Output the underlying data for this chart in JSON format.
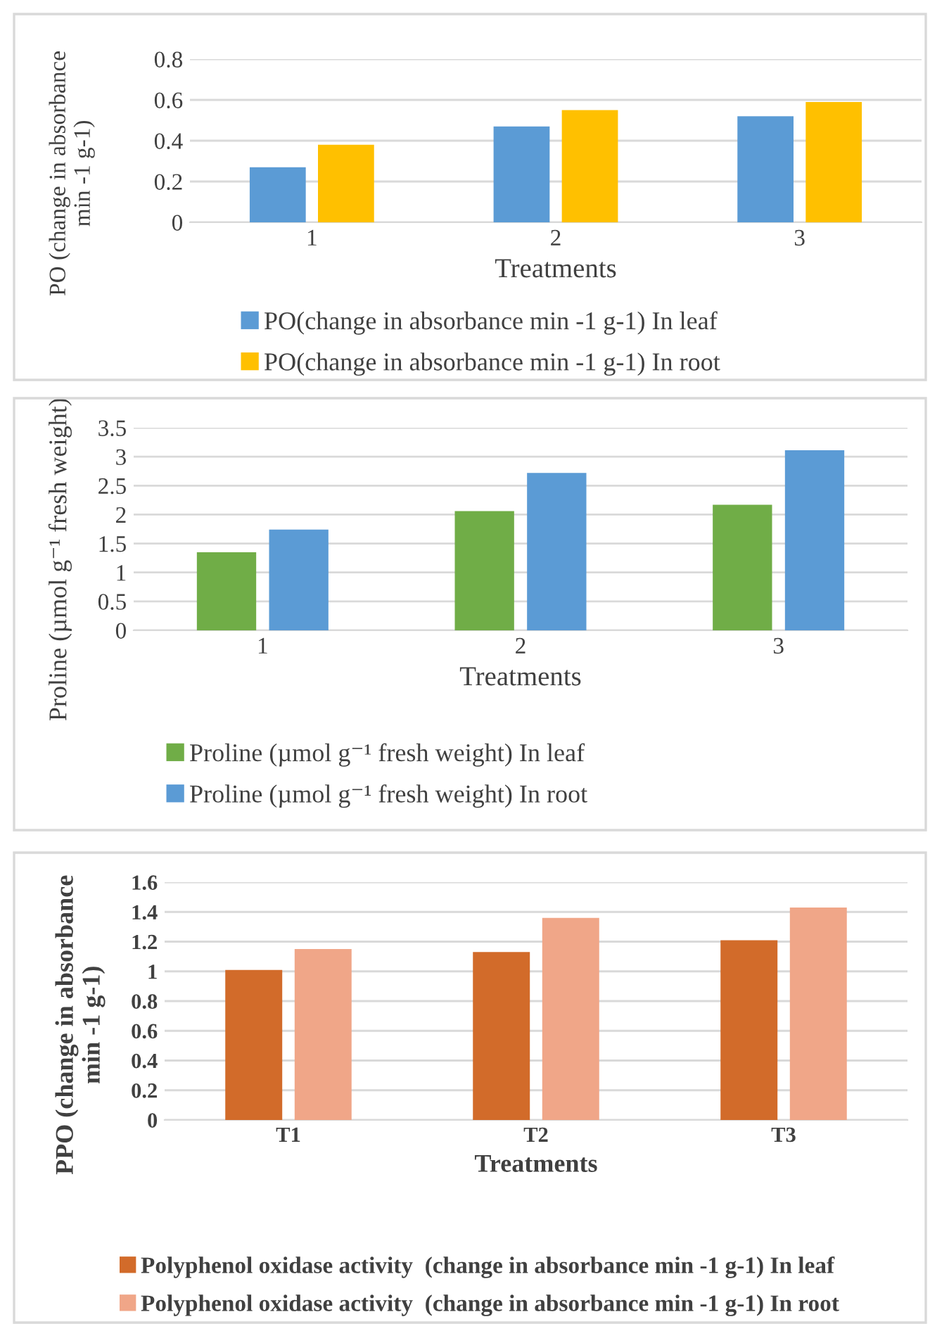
{
  "chart_data": [
    {
      "type": "bar",
      "categories": [
        "1",
        "2",
        "3"
      ],
      "xlabel": "Treatments",
      "ylabel": "PO (change in absorbance\nmin -1 g-1)",
      "ylim": [
        0,
        0.8
      ],
      "yticks": [
        0,
        0.2,
        0.4,
        0.6,
        0.8
      ],
      "grid": "y",
      "legend": "bottom",
      "series": [
        {
          "name": "PO(change in absorbance min -1 g-1) In leaf",
          "color": "#5b9bd5",
          "values": [
            0.27,
            0.47,
            0.52
          ]
        },
        {
          "name": "PO(change in absorbance min -1 g-1) In root",
          "color": "#ffc000",
          "values": [
            0.38,
            0.55,
            0.59
          ]
        }
      ]
    },
    {
      "type": "bar",
      "categories": [
        "1",
        "2",
        "3"
      ],
      "xlabel": "Treatments",
      "ylabel": "Proline (µmol g⁻¹ fresh weight)",
      "ylim": [
        0,
        3.5
      ],
      "yticks": [
        0,
        0.5,
        1,
        1.5,
        2,
        2.5,
        3,
        3.5
      ],
      "grid": "y",
      "legend": "bottom",
      "series": [
        {
          "name": "Proline (µmol g⁻¹ fresh weight) In leaf",
          "color": "#70ad47",
          "values": [
            1.35,
            2.06,
            2.17
          ]
        },
        {
          "name": "Proline (µmol g⁻¹ fresh weight) In root",
          "color": "#5b9bd5",
          "values": [
            1.74,
            2.72,
            3.11
          ]
        }
      ]
    },
    {
      "type": "bar",
      "categories": [
        "T1",
        "T2",
        "T3"
      ],
      "xlabel": "Treatments",
      "ylabel": "PPO (change in absorbance\nmin -1 g-1)",
      "ylim": [
        0,
        1.6
      ],
      "yticks": [
        0,
        0.2,
        0.4,
        0.6,
        0.8,
        1,
        1.2,
        1.4,
        1.6
      ],
      "grid": "y",
      "legend": "bottom",
      "series": [
        {
          "name": "Polyphenol oxidase activity  (change in absorbance min -1 g-1) In leaf",
          "color": "#d26b2a",
          "values": [
            1.01,
            1.13,
            1.21
          ]
        },
        {
          "name": "Polyphenol oxidase activity  (change in absorbance min -1 g-1) In root",
          "color": "#f0a688",
          "values": [
            1.15,
            1.36,
            1.43
          ]
        }
      ]
    }
  ]
}
